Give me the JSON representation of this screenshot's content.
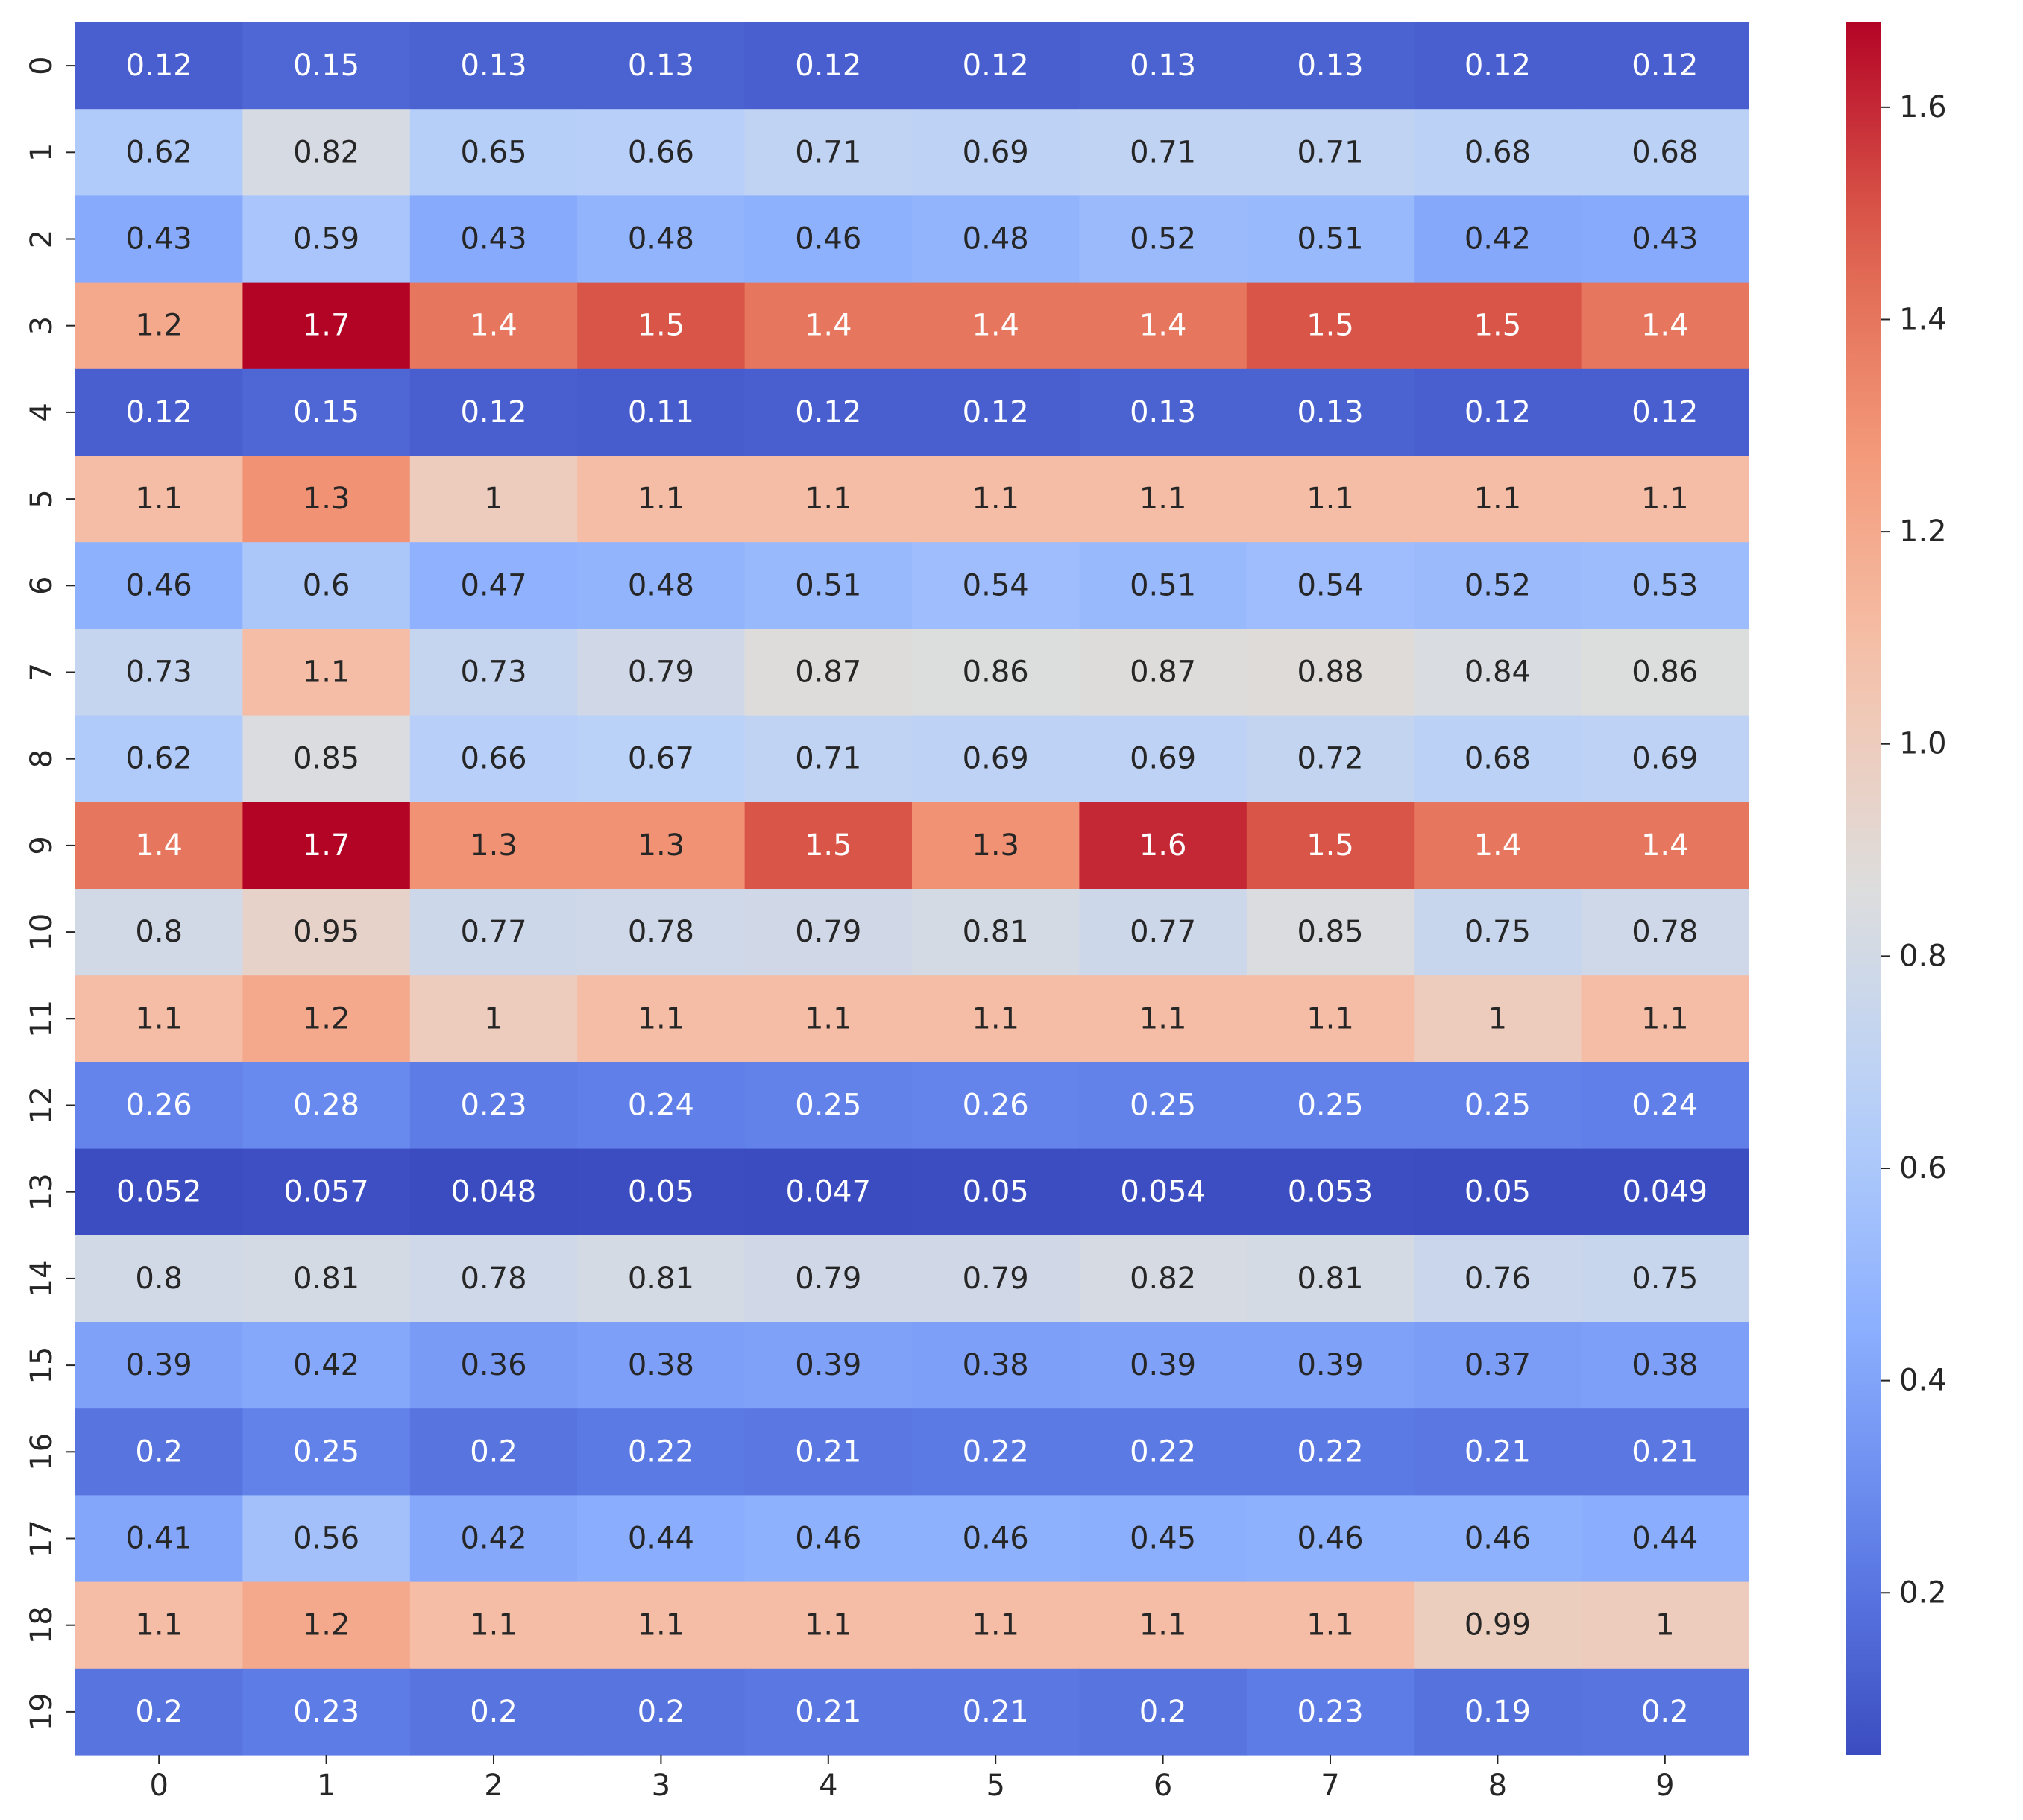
{
  "chart_data": {
    "type": "heatmap",
    "title": "",
    "xlabel": "",
    "ylabel": "",
    "x_categories": [
      "0",
      "1",
      "2",
      "3",
      "4",
      "5",
      "6",
      "7",
      "8",
      "9"
    ],
    "y_categories": [
      "0",
      "1",
      "2",
      "3",
      "4",
      "5",
      "6",
      "7",
      "8",
      "9",
      "10",
      "11",
      "12",
      "13",
      "14",
      "15",
      "16",
      "17",
      "18",
      "19"
    ],
    "values": [
      [
        0.12,
        0.15,
        0.13,
        0.13,
        0.12,
        0.12,
        0.13,
        0.13,
        0.12,
        0.12
      ],
      [
        0.62,
        0.82,
        0.65,
        0.66,
        0.71,
        0.69,
        0.71,
        0.71,
        0.68,
        0.68
      ],
      [
        0.43,
        0.59,
        0.43,
        0.48,
        0.46,
        0.48,
        0.52,
        0.51,
        0.42,
        0.43
      ],
      [
        1.2,
        1.7,
        1.4,
        1.5,
        1.4,
        1.4,
        1.4,
        1.5,
        1.5,
        1.4
      ],
      [
        0.12,
        0.15,
        0.12,
        0.11,
        0.12,
        0.12,
        0.13,
        0.13,
        0.12,
        0.12
      ],
      [
        1.1,
        1.3,
        1,
        1.1,
        1.1,
        1.1,
        1.1,
        1.1,
        1.1,
        1.1
      ],
      [
        0.46,
        0.6,
        0.47,
        0.48,
        0.51,
        0.54,
        0.51,
        0.54,
        0.52,
        0.53
      ],
      [
        0.73,
        1.1,
        0.73,
        0.79,
        0.87,
        0.86,
        0.87,
        0.88,
        0.84,
        0.86
      ],
      [
        0.62,
        0.85,
        0.66,
        0.67,
        0.71,
        0.69,
        0.69,
        0.72,
        0.68,
        0.69
      ],
      [
        1.4,
        1.7,
        1.3,
        1.3,
        1.5,
        1.3,
        1.6,
        1.5,
        1.4,
        1.4
      ],
      [
        0.8,
        0.95,
        0.77,
        0.78,
        0.79,
        0.81,
        0.77,
        0.85,
        0.75,
        0.78
      ],
      [
        1.1,
        1.2,
        1,
        1.1,
        1.1,
        1.1,
        1.1,
        1.1,
        1,
        1.1
      ],
      [
        0.26,
        0.28,
        0.23,
        0.24,
        0.25,
        0.26,
        0.25,
        0.25,
        0.25,
        0.24
      ],
      [
        0.052,
        0.057,
        0.048,
        0.05,
        0.047,
        0.05,
        0.054,
        0.053,
        0.05,
        0.049
      ],
      [
        0.8,
        0.81,
        0.78,
        0.81,
        0.79,
        0.79,
        0.82,
        0.81,
        0.76,
        0.75
      ],
      [
        0.39,
        0.42,
        0.36,
        0.38,
        0.39,
        0.38,
        0.39,
        0.39,
        0.37,
        0.38
      ],
      [
        0.2,
        0.25,
        0.2,
        0.22,
        0.21,
        0.22,
        0.22,
        0.22,
        0.21,
        0.21
      ],
      [
        0.41,
        0.56,
        0.42,
        0.44,
        0.46,
        0.46,
        0.45,
        0.46,
        0.46,
        0.44
      ],
      [
        1.1,
        1.2,
        1.1,
        1.1,
        1.1,
        1.1,
        1.1,
        1.1,
        0.99,
        1
      ],
      [
        0.2,
        0.23,
        0.2,
        0.2,
        0.21,
        0.21,
        0.2,
        0.23,
        0.19,
        0.2
      ]
    ],
    "colormap": "coolwarm",
    "colorbar_range": [
      0.047,
      1.68
    ],
    "colorbar_ticks": [
      0.2,
      0.4,
      0.6,
      0.8,
      1.0,
      1.2,
      1.4,
      1.6
    ],
    "colorbar_tick_labels": [
      "0.2",
      "0.4",
      "0.6",
      "0.8",
      "1.0",
      "1.2",
      "1.4",
      "1.6"
    ],
    "legend_position": "right",
    "grid": false
  }
}
